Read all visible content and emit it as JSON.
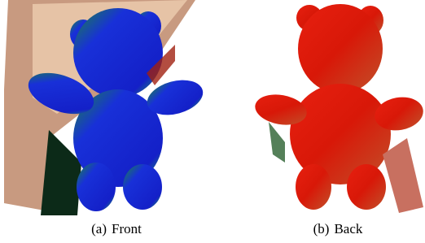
{
  "subfigures": [
    {
      "label": "(a)",
      "caption": "Front"
    },
    {
      "label": "(b)",
      "caption": "Back"
    }
  ]
}
